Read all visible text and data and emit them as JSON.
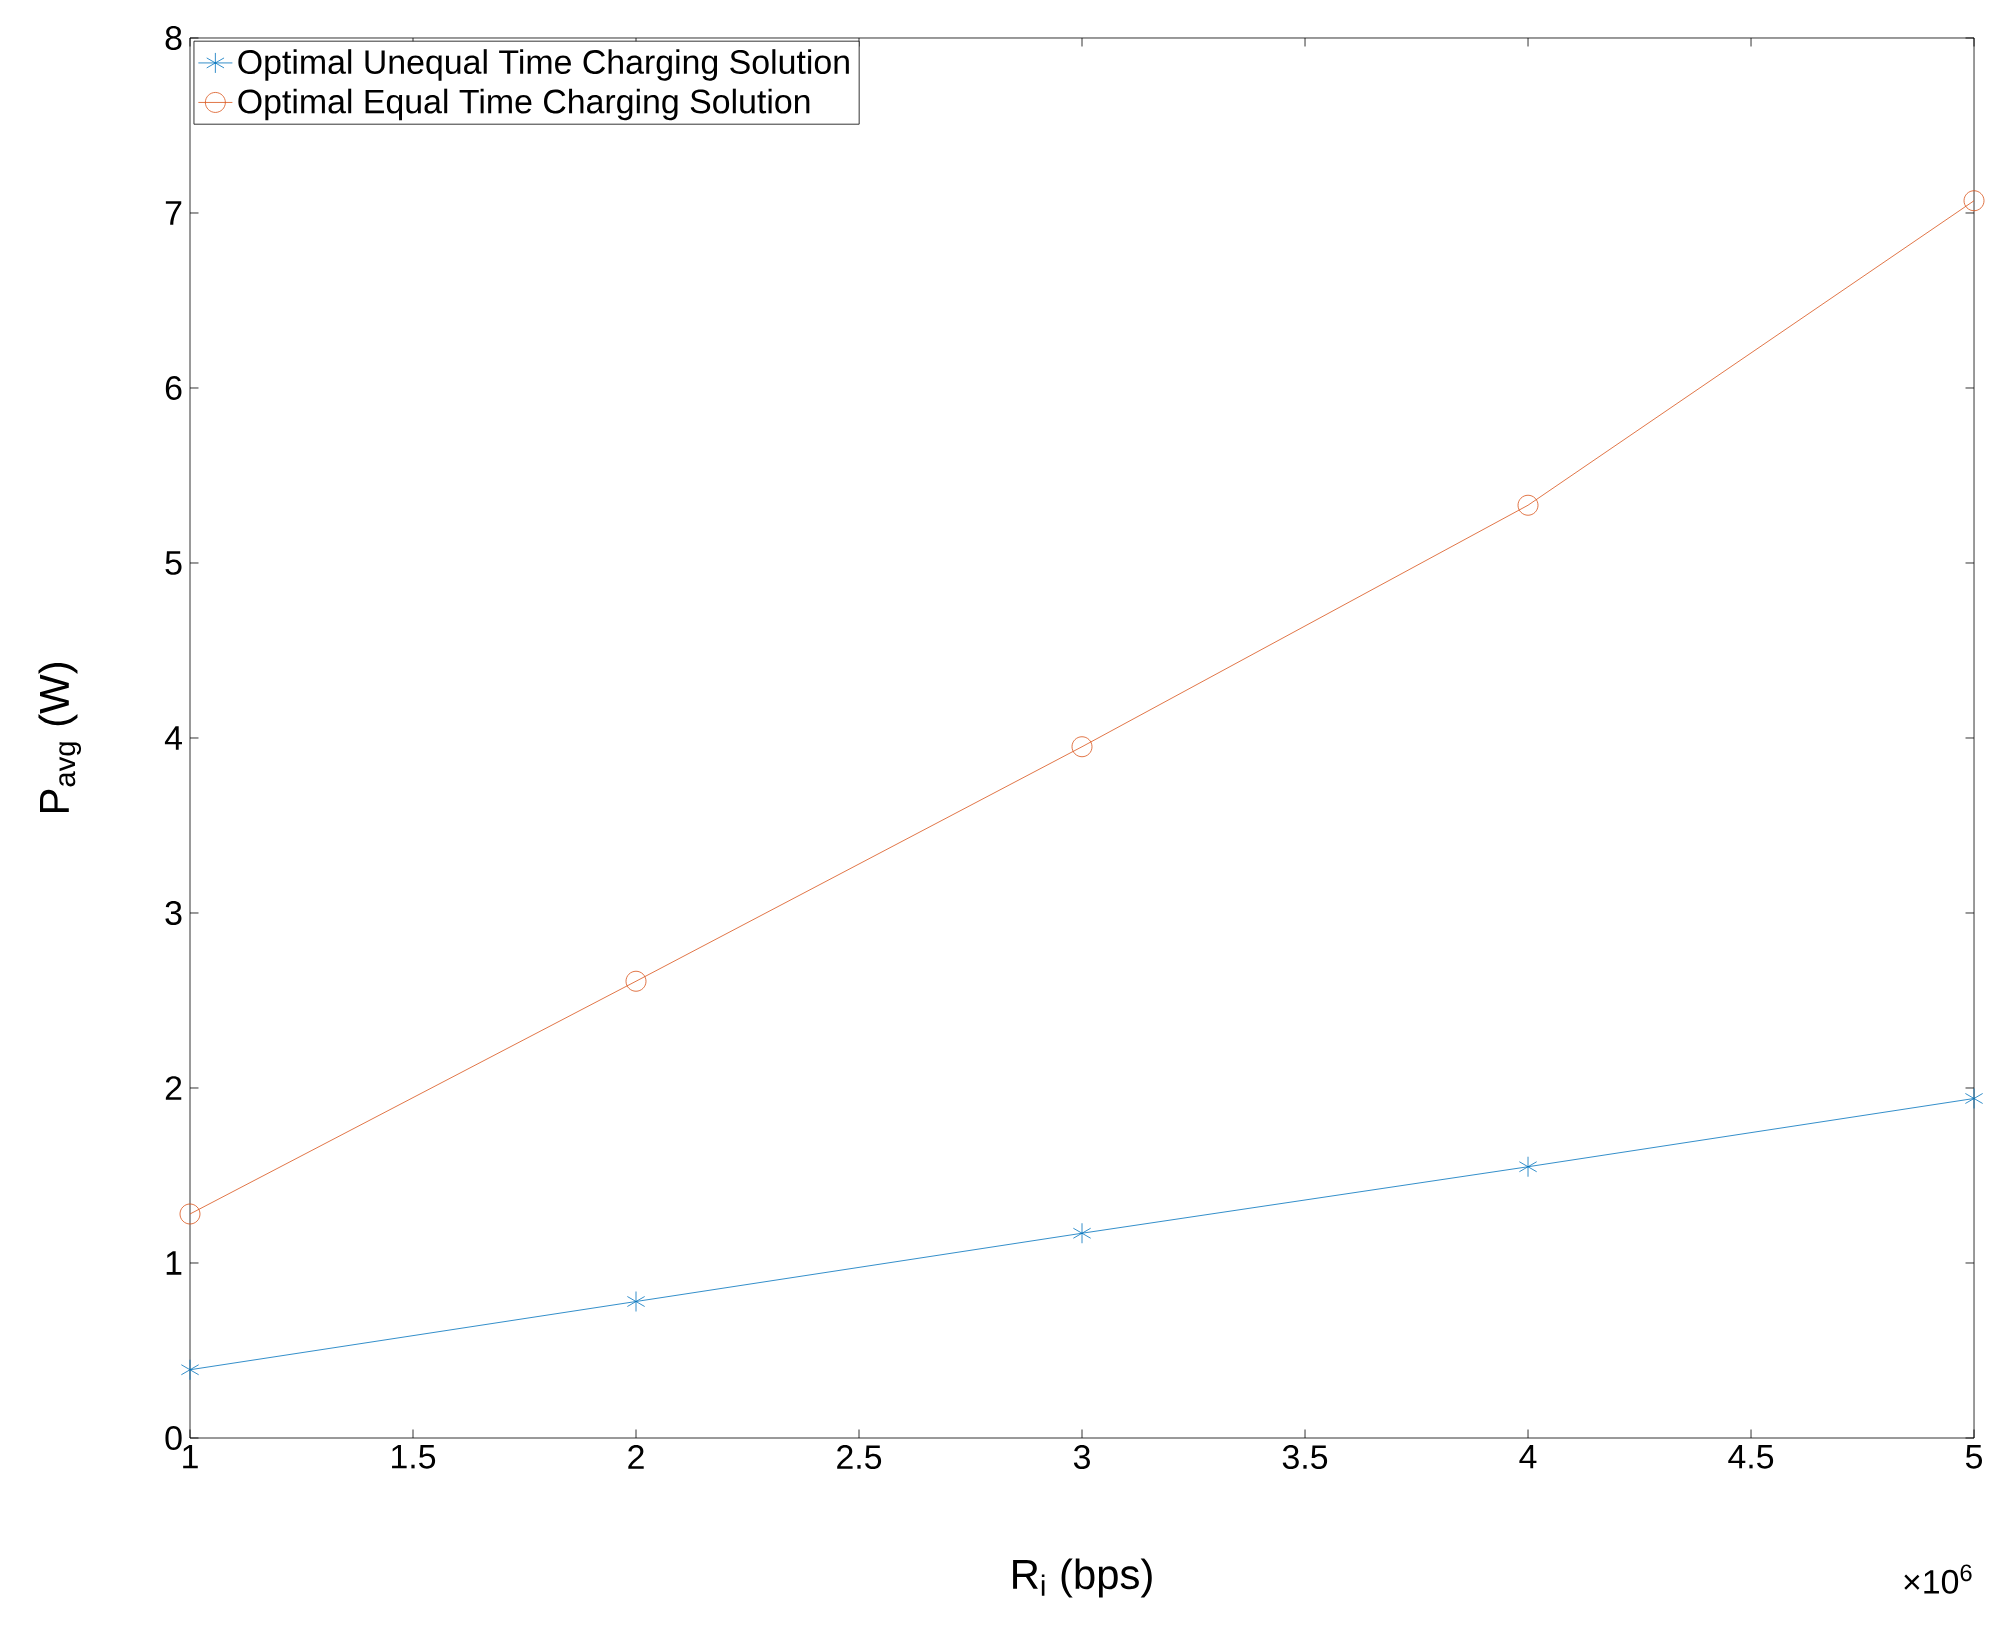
{
  "chart_data": {
    "type": "line",
    "xlabel": "R$_{i}$ (bps)",
    "ylabel": "P$_{avg}$ (W)",
    "x": [
      1,
      2,
      3,
      4,
      5
    ],
    "series": [
      {
        "name": "Optimal Unequal Time Charging Solution",
        "color": "#0072bd",
        "marker": "cross",
        "values": [
          0.39,
          0.78,
          1.17,
          1.55,
          1.94
        ]
      },
      {
        "name": "Optimal Equal Time Charging Solution",
        "color": "#d95319",
        "marker": "circle",
        "values": [
          1.28,
          2.61,
          3.95,
          5.33,
          7.07
        ]
      }
    ],
    "xlim": [
      1,
      5
    ],
    "ylim": [
      0,
      8
    ],
    "xticks": [
      1,
      1.5,
      2,
      2.5,
      3,
      3.5,
      4,
      4.5,
      5
    ],
    "yticks": [
      0,
      1,
      2,
      3,
      4,
      5,
      6,
      7,
      8
    ],
    "annotations": [
      "×10$^{6}$"
    ],
    "legend": "top left",
    "grid": false,
    "line_style": "solid"
  }
}
